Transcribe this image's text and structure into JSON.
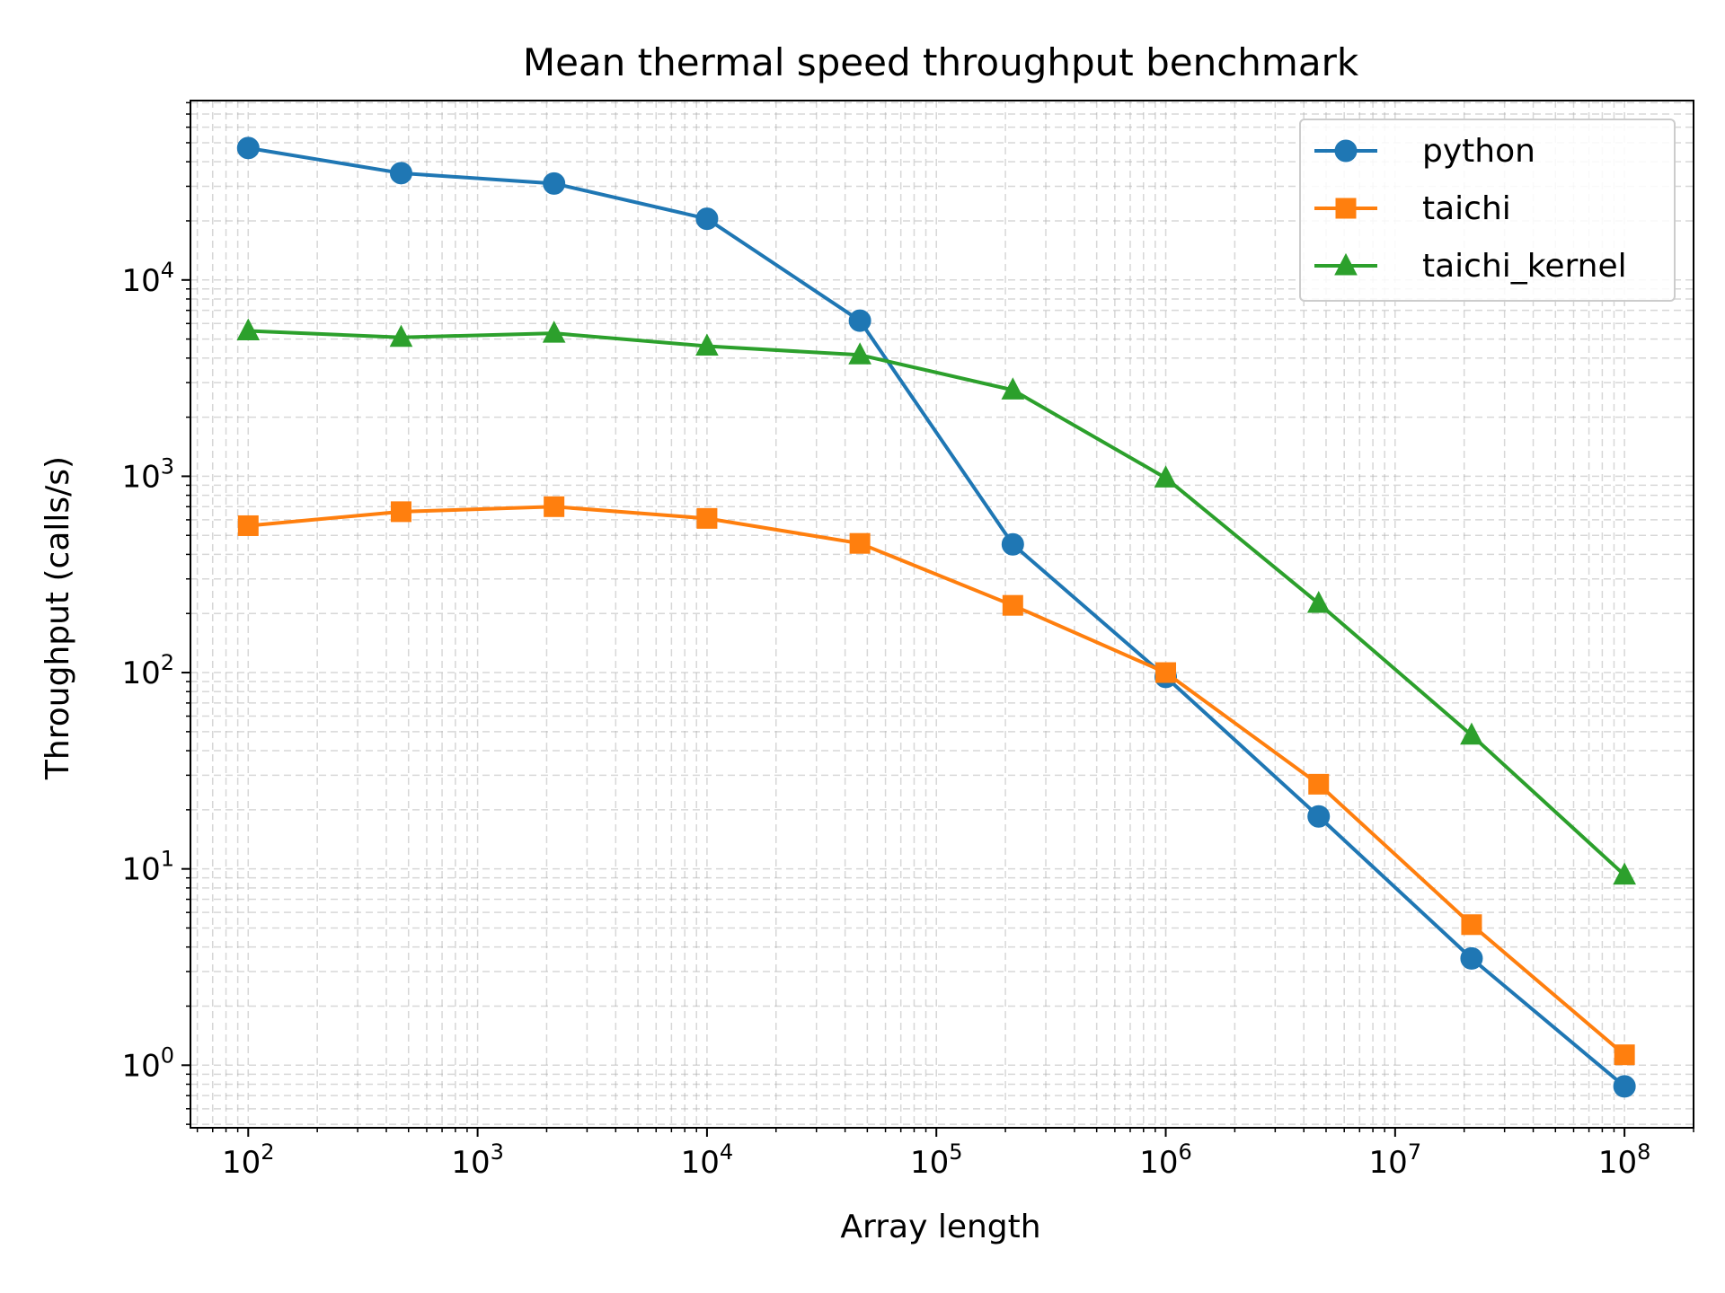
{
  "chart_data": {
    "type": "line",
    "title": "Mean thermal speed throughput benchmark",
    "xlabel": "Array length",
    "ylabel": "Throughput (calls/s)",
    "xscale": "log",
    "yscale": "log",
    "xlim": [
      56,
      200000000
    ],
    "ylim": [
      0.48,
      82000
    ],
    "grid": true,
    "grid_minor": true,
    "legend_position": "top-right",
    "x_tick_labels": [
      "10^2",
      "10^3",
      "10^4",
      "10^5",
      "10^6",
      "10^7",
      "10^8"
    ],
    "y_tick_labels": [
      "10^0",
      "10^1",
      "10^2",
      "10^3",
      "10^4"
    ],
    "x": [
      100,
      464,
      2154,
      10000,
      46416,
      215443,
      1000000,
      4641589,
      21544347,
      100000000
    ],
    "series": [
      {
        "name": "python",
        "color": "#1f77b4",
        "marker": "circle",
        "values": [
          47000,
          35000,
          31000,
          20500,
          6200,
          450,
          95,
          18.5,
          3.5,
          0.78
        ]
      },
      {
        "name": "taichi",
        "color": "#ff7f0e",
        "marker": "square",
        "values": [
          560,
          660,
          700,
          610,
          455,
          220,
          100,
          27,
          5.2,
          1.13
        ]
      },
      {
        "name": "taichi_kernel",
        "color": "#2ca02c",
        "marker": "triangle",
        "values": [
          5500,
          5100,
          5350,
          4600,
          4150,
          2750,
          980,
          225,
          48,
          9.3
        ]
      }
    ]
  }
}
